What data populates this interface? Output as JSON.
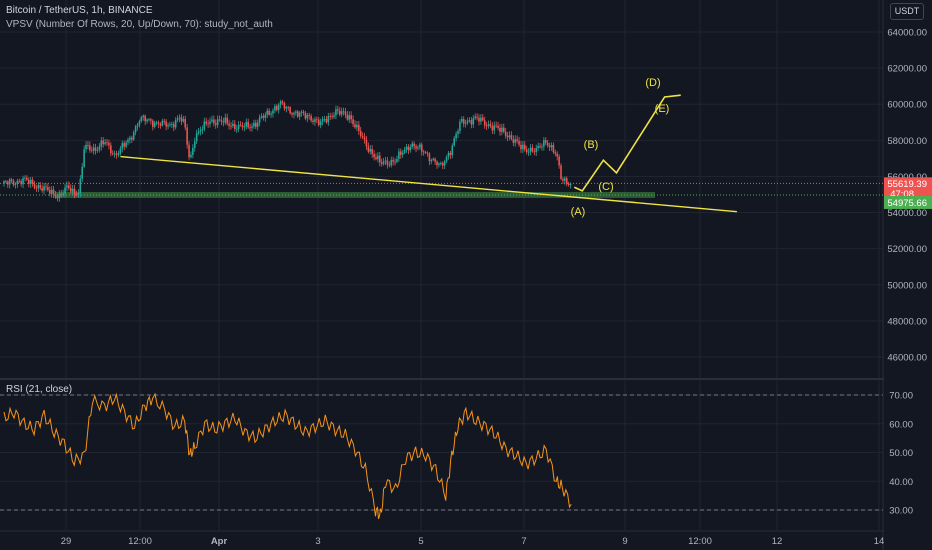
{
  "header": {
    "symbol_line": "Bitcoin / TetherUS, 1h, BINANCE",
    "indicator_line": "VPSV (Number Of Rows, 20, Up/Down, 70): study_not_auth",
    "currency_button": "USDT"
  },
  "colors": {
    "background": "#131722",
    "grid": "#1f2430",
    "up_candle": "#26a69a",
    "down_candle": "#ef5350",
    "annotation": "#f0e442",
    "rsi_line": "#f7931a",
    "support_zone": "#4caf50"
  },
  "chart_data": [
    {
      "type": "candlestick",
      "symbol": "Bitcoin / TetherUS",
      "interval": "1h",
      "exchange": "BINANCE",
      "x_ticks": [
        "29",
        "12:00",
        "Apr",
        "3",
        "5",
        "7",
        "9",
        "12:00",
        "12",
        "14"
      ],
      "y_ticks": [
        46000,
        48000,
        50000,
        52000,
        54000,
        56000,
        58000,
        60000,
        62000,
        64000
      ],
      "ylim": [
        45000,
        65200
      ],
      "current_price": "55619.39",
      "countdown": "47:08",
      "support_price": "54975.66",
      "close_trend": [
        {
          "x": 0.0,
          "y": 55600
        },
        {
          "x": 2.0,
          "y": 55800
        },
        {
          "x": 4.0,
          "y": 55300
        },
        {
          "x": 5.5,
          "y": 54900
        },
        {
          "x": 6.4,
          "y": 55400
        },
        {
          "x": 7.0,
          "y": 55100
        },
        {
          "x": 7.5,
          "y": 55200
        },
        {
          "x": 8.0,
          "y": 57600
        },
        {
          "x": 9.0,
          "y": 57500
        },
        {
          "x": 10.0,
          "y": 57900
        },
        {
          "x": 11.0,
          "y": 57200
        },
        {
          "x": 12.5,
          "y": 58000
        },
        {
          "x": 13.5,
          "y": 59200
        },
        {
          "x": 15.0,
          "y": 59000
        },
        {
          "x": 16.5,
          "y": 58800
        },
        {
          "x": 17.5,
          "y": 59300
        },
        {
          "x": 18.0,
          "y": 58800
        },
        {
          "x": 18.5,
          "y": 56800
        },
        {
          "x": 19.0,
          "y": 58200
        },
        {
          "x": 20.5,
          "y": 59100
        },
        {
          "x": 22.0,
          "y": 59000
        },
        {
          "x": 23.5,
          "y": 58700
        },
        {
          "x": 25.0,
          "y": 58900
        },
        {
          "x": 26.5,
          "y": 59600
        },
        {
          "x": 27.5,
          "y": 60000
        },
        {
          "x": 29.0,
          "y": 59500
        },
        {
          "x": 30.5,
          "y": 59300
        },
        {
          "x": 31.5,
          "y": 58900
        },
        {
          "x": 33.0,
          "y": 59600
        },
        {
          "x": 34.5,
          "y": 59300
        },
        {
          "x": 36.0,
          "y": 57800
        },
        {
          "x": 37.5,
          "y": 56700
        },
        {
          "x": 39.0,
          "y": 56900
        },
        {
          "x": 40.5,
          "y": 57800
        },
        {
          "x": 42.0,
          "y": 57300
        },
        {
          "x": 43.5,
          "y": 56500
        },
        {
          "x": 44.5,
          "y": 57500
        },
        {
          "x": 45.5,
          "y": 59000
        },
        {
          "x": 47.0,
          "y": 59200
        },
        {
          "x": 48.5,
          "y": 58800
        },
        {
          "x": 50.0,
          "y": 58400
        },
        {
          "x": 51.5,
          "y": 57600
        },
        {
          "x": 53.0,
          "y": 57400
        },
        {
          "x": 54.0,
          "y": 58000
        },
        {
          "x": 55.0,
          "y": 57200
        },
        {
          "x": 55.5,
          "y": 55900
        },
        {
          "x": 56.5,
          "y": 55619
        }
      ],
      "annotations": [
        "(A)",
        "(B)",
        "(C)",
        "(D)",
        "(E)"
      ],
      "projected_path": [
        {
          "x": 56.8,
          "y": 55400
        },
        {
          "x": 57.6,
          "y": 55200
        },
        {
          "x": 59.7,
          "y": 56900
        },
        {
          "x": 61.0,
          "y": 56200
        },
        {
          "x": 65.8,
          "y": 60400
        },
        {
          "x": 67.4,
          "y": 60500
        }
      ],
      "trendline": [
        {
          "x": 11.6,
          "y": 57100
        },
        {
          "x": 73.0,
          "y": 54050
        }
      ]
    },
    {
      "type": "line",
      "title": "RSI (21, close)",
      "y_ticks": [
        30.0,
        40.0,
        50.0,
        60.0,
        70.0
      ],
      "ylim": [
        24,
        73
      ],
      "reference_lines": [
        70,
        30
      ],
      "series": [
        {
          "values": [
            [
              0,
              62
            ],
            [
              1,
              64
            ],
            [
              2,
              60
            ],
            [
              3,
              58
            ],
            [
              4,
              63
            ],
            [
              5,
              57
            ],
            [
              6,
              53
            ],
            [
              7,
              47
            ],
            [
              8,
              49
            ],
            [
              8.8,
              68
            ],
            [
              10,
              66
            ],
            [
              11,
              69
            ],
            [
              12,
              64
            ],
            [
              13,
              59
            ],
            [
              14,
              66
            ],
            [
              14.8,
              69
            ],
            [
              16,
              65
            ],
            [
              17,
              59
            ],
            [
              18,
              61
            ],
            [
              18.5,
              49
            ],
            [
              19,
              52
            ],
            [
              20,
              60
            ],
            [
              21,
              58
            ],
            [
              22,
              60
            ],
            [
              23,
              62
            ],
            [
              24,
              57
            ],
            [
              25,
              55
            ],
            [
              26,
              58
            ],
            [
              27,
              61
            ],
            [
              28,
              63
            ],
            [
              29,
              60
            ],
            [
              30,
              57
            ],
            [
              31,
              59
            ],
            [
              32,
              61
            ],
            [
              33,
              58
            ],
            [
              34,
              56
            ],
            [
              35,
              51
            ],
            [
              36,
              44
            ],
            [
              37,
              30
            ],
            [
              37.5,
              28
            ],
            [
              38,
              40
            ],
            [
              39,
              37
            ],
            [
              40,
              48
            ],
            [
              41,
              50
            ],
            [
              42,
              49
            ],
            [
              43,
              44
            ],
            [
              44,
              35
            ],
            [
              44.6,
              49
            ],
            [
              45.2,
              59
            ],
            [
              46,
              64
            ],
            [
              47,
              61
            ],
            [
              48,
              59
            ],
            [
              49,
              56
            ],
            [
              50,
              51
            ],
            [
              51,
              49
            ],
            [
              52,
              46
            ],
            [
              53,
              48
            ],
            [
              54,
              51
            ],
            [
              55,
              40
            ],
            [
              55.6,
              38
            ],
            [
              56.5,
              32
            ]
          ]
        }
      ]
    }
  ]
}
